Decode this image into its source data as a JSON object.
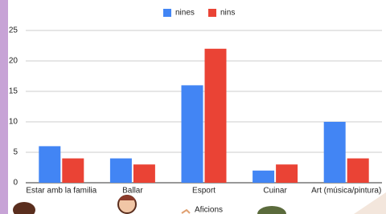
{
  "chart_data": {
    "type": "bar",
    "categories": [
      "Estar amb la familia",
      "Ballar",
      "Esport",
      "Cuinar",
      "Art (música/pintura)"
    ],
    "series": [
      {
        "name": "nines",
        "color": "#4285f4",
        "values": [
          6,
          4,
          16,
          2,
          10
        ]
      },
      {
        "name": "nins",
        "color": "#ea4335",
        "values": [
          4,
          3,
          22,
          3,
          4
        ]
      }
    ],
    "ylim": [
      0,
      25
    ],
    "yticks": [
      0,
      5,
      10,
      15,
      20,
      25
    ],
    "grid": true,
    "caption": "Aficions"
  }
}
